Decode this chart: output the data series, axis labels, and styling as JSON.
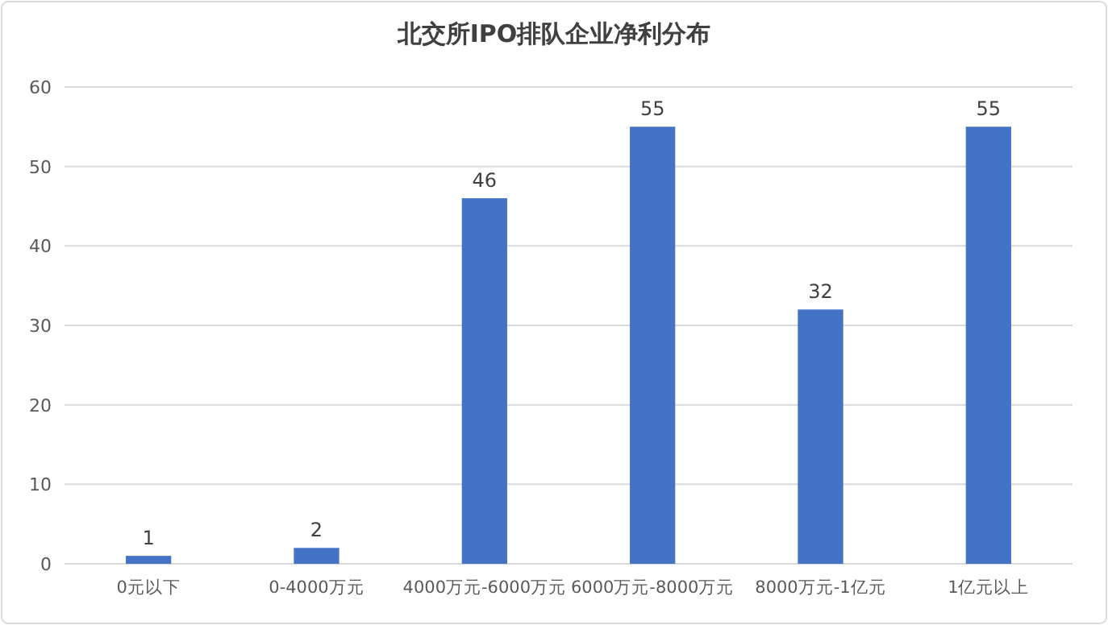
{
  "chart_data": {
    "type": "bar",
    "title": "北交所IPO排队企业净利分布",
    "categories": [
      "0元以下",
      "0-4000万元",
      "4000万元-6000万元",
      "6000万元-8000万元",
      "8000万元-1亿元",
      "1亿元以上"
    ],
    "values": [
      1,
      2,
      46,
      55,
      32,
      55
    ],
    "color": "#4472c4",
    "ylim": [
      0,
      60
    ],
    "yticks": [
      0,
      10,
      20,
      30,
      40,
      50,
      60
    ],
    "grid": "y",
    "data_labels": true
  }
}
